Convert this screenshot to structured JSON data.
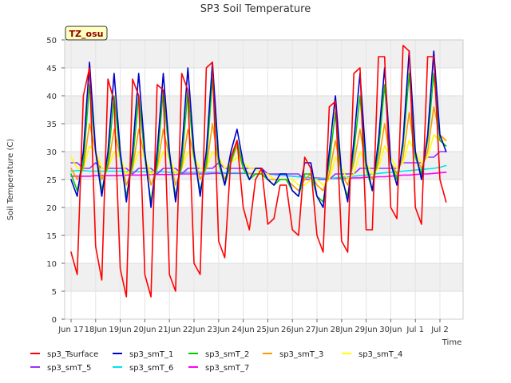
{
  "chart_data": {
    "type": "line",
    "title": "SP3 Soil Temperature",
    "xlabel": "Time",
    "ylabel": "Soil Temperature (C)",
    "annotation": "TZ_osu",
    "x_domain": [
      0,
      16
    ],
    "ylim": [
      0,
      50
    ],
    "x_ticks": [
      {
        "label": "Jun 17",
        "x": 0
      },
      {
        "label": "18Jun",
        "x": 1
      },
      {
        "label": "19Jun",
        "x": 2
      },
      {
        "label": "20Jun",
        "x": 3
      },
      {
        "label": "21Jun",
        "x": 4
      },
      {
        "label": "22Jun",
        "x": 5
      },
      {
        "label": "23Jun",
        "x": 6
      },
      {
        "label": "24Jun",
        "x": 7
      },
      {
        "label": "25Jun",
        "x": 8
      },
      {
        "label": "26Jun",
        "x": 9
      },
      {
        "label": "27Jun",
        "x": 10
      },
      {
        "label": "28Jun",
        "x": 11
      },
      {
        "label": "29Jun",
        "x": 12
      },
      {
        "label": "30Jun",
        "x": 13
      },
      {
        "label": "Jul 1",
        "x": 14
      },
      {
        "label": "Jul 2",
        "x": 15
      }
    ],
    "y_ticks": [
      0,
      5,
      10,
      15,
      20,
      25,
      30,
      35,
      40,
      45,
      50
    ],
    "grid": true,
    "legend_position": "bottom",
    "series": [
      {
        "name": "sp3_Tsurface",
        "color": "#ff0000",
        "x_start": 0.0,
        "x_step": 0.25,
        "values": [
          12,
          8,
          40,
          45,
          13,
          7,
          43,
          39,
          9,
          4,
          43,
          40,
          8,
          4,
          42,
          41,
          8,
          5,
          44,
          41,
          10,
          8,
          45,
          46,
          14,
          11,
          29,
          32,
          20,
          16,
          25,
          27,
          17,
          18,
          24,
          24,
          16,
          15,
          29,
          27,
          15,
          12,
          38,
          39,
          14,
          12,
          44,
          45,
          16,
          16,
          47,
          47,
          20,
          18,
          49,
          48,
          20,
          17,
          47,
          47,
          25,
          21
        ]
      },
      {
        "name": "sp3_smT_1",
        "color": "#0000cc",
        "x_start": 0.0,
        "x_step": 0.25,
        "values": [
          25,
          22,
          30,
          46,
          30,
          22,
          30,
          44,
          30,
          21,
          30,
          44,
          30,
          20,
          30,
          44,
          30,
          21,
          30,
          45,
          30,
          22,
          30,
          46,
          29,
          24,
          30,
          34,
          28,
          25,
          27,
          27,
          25,
          24,
          26,
          26,
          23,
          22,
          28,
          28,
          22,
          20,
          30,
          40,
          26,
          21,
          32,
          44,
          28,
          23,
          32,
          45,
          28,
          24,
          32,
          48,
          30,
          25,
          33,
          48,
          33,
          30
        ]
      },
      {
        "name": "sp3_smT_2",
        "color": "#00cc00",
        "x_start": 0.0,
        "x_step": 0.25,
        "values": [
          26,
          23,
          28,
          42,
          30,
          23,
          28,
          40,
          29,
          22,
          28,
          40,
          29,
          21,
          28,
          41,
          29,
          22,
          28,
          41,
          29,
          23,
          28,
          43,
          28,
          24,
          28,
          32,
          27,
          25,
          26,
          26,
          25,
          24,
          25,
          25,
          23,
          22,
          26,
          26,
          22,
          21,
          28,
          37,
          25,
          22,
          30,
          40,
          27,
          23,
          30,
          42,
          28,
          25,
          31,
          44,
          29,
          26,
          32,
          44,
          32,
          31
        ]
      },
      {
        "name": "sp3_smT_3",
        "color": "#ff9900",
        "x_start": 0.0,
        "x_step": 0.25,
        "values": [
          27,
          25,
          27,
          35,
          30,
          25,
          27,
          34,
          29,
          24,
          27,
          34,
          29,
          24,
          27,
          34,
          29,
          24,
          27,
          34,
          29,
          25,
          27,
          35,
          28,
          25,
          28,
          31,
          27,
          26,
          26,
          26,
          25,
          25,
          25,
          25,
          24,
          23,
          25,
          26,
          24,
          23,
          26,
          32,
          26,
          24,
          28,
          34,
          27,
          25,
          28,
          35,
          28,
          26,
          29,
          37,
          29,
          27,
          30,
          38,
          33,
          32
        ]
      },
      {
        "name": "sp3_smT_4",
        "color": "#ffff00",
        "x_start": 0.0,
        "x_step": 0.25,
        "values": [
          29,
          27,
          27,
          31,
          30,
          27,
          27,
          30,
          29,
          26,
          27,
          30,
          29,
          26,
          27,
          30,
          29,
          26,
          27,
          30,
          29,
          27,
          27,
          30,
          29,
          27,
          28,
          29,
          28,
          27,
          27,
          26,
          26,
          25,
          25,
          25,
          25,
          24,
          24,
          25,
          25,
          24,
          25,
          29,
          27,
          25,
          26,
          30,
          28,
          26,
          27,
          31,
          29,
          27,
          28,
          32,
          30,
          28,
          29,
          33,
          32,
          32
        ]
      },
      {
        "name": "sp3_smT_5",
        "color": "#9933ff",
        "x_start": 0.0,
        "x_step": 0.25,
        "values": [
          28,
          28,
          27,
          27,
          28,
          27,
          27,
          27,
          27,
          27,
          26,
          27,
          27,
          27,
          26,
          27,
          27,
          27,
          26,
          27,
          27,
          27,
          27,
          27,
          28,
          27,
          27,
          27,
          27,
          27,
          27,
          27,
          26,
          26,
          26,
          26,
          26,
          26,
          25,
          25,
          25,
          25,
          25,
          26,
          26,
          26,
          26,
          27,
          27,
          27,
          27,
          27,
          27,
          27,
          28,
          28,
          28,
          28,
          29,
          29,
          30,
          30
        ]
      },
      {
        "name": "sp3_smT_6",
        "color": "#00e5e5",
        "x_start": 0.0,
        "x_step": 0.25,
        "values": [
          26.5,
          26.6,
          26.6,
          26.5,
          26.5,
          26.5,
          26.5,
          26.5,
          26.5,
          26.4,
          26.4,
          26.4,
          26.4,
          26.4,
          26.4,
          26.4,
          26.3,
          26.3,
          26.3,
          26.3,
          26.3,
          26.3,
          26.3,
          26.3,
          26.3,
          26.2,
          26.2,
          26.2,
          26.2,
          26.1,
          26.0,
          26.0,
          26.0,
          25.9,
          25.8,
          25.7,
          25.6,
          25.5,
          25.4,
          25.3,
          25.2,
          25.2,
          25.2,
          25.3,
          25.4,
          25.5,
          25.6,
          25.7,
          25.8,
          26.0,
          26.1,
          26.2,
          26.3,
          26.4,
          26.5,
          26.6,
          26.7,
          26.8,
          26.9,
          27.0,
          27.2,
          27.5
        ]
      },
      {
        "name": "sp3_smT_7",
        "color": "#ff00ff",
        "x_start": 0.0,
        "x_step": 0.25,
        "values": [
          25.6,
          25.6,
          25.6,
          25.6,
          25.7,
          25.7,
          25.7,
          25.7,
          25.7,
          25.8,
          25.8,
          25.8,
          25.8,
          25.9,
          25.9,
          25.9,
          25.9,
          25.9,
          26.0,
          26.0,
          26.0,
          26.0,
          26.0,
          26.1,
          26.1,
          26.1,
          26.1,
          26.1,
          26.1,
          26.1,
          26.0,
          26.0,
          26.0,
          25.9,
          25.8,
          25.7,
          25.6,
          25.5,
          25.4,
          25.3,
          25.3,
          25.2,
          25.2,
          25.2,
          25.2,
          25.2,
          25.3,
          25.3,
          25.4,
          25.4,
          25.5,
          25.5,
          25.6,
          25.7,
          25.8,
          25.8,
          25.9,
          26.0,
          26.0,
          26.1,
          26.2,
          26.3
        ]
      }
    ]
  }
}
